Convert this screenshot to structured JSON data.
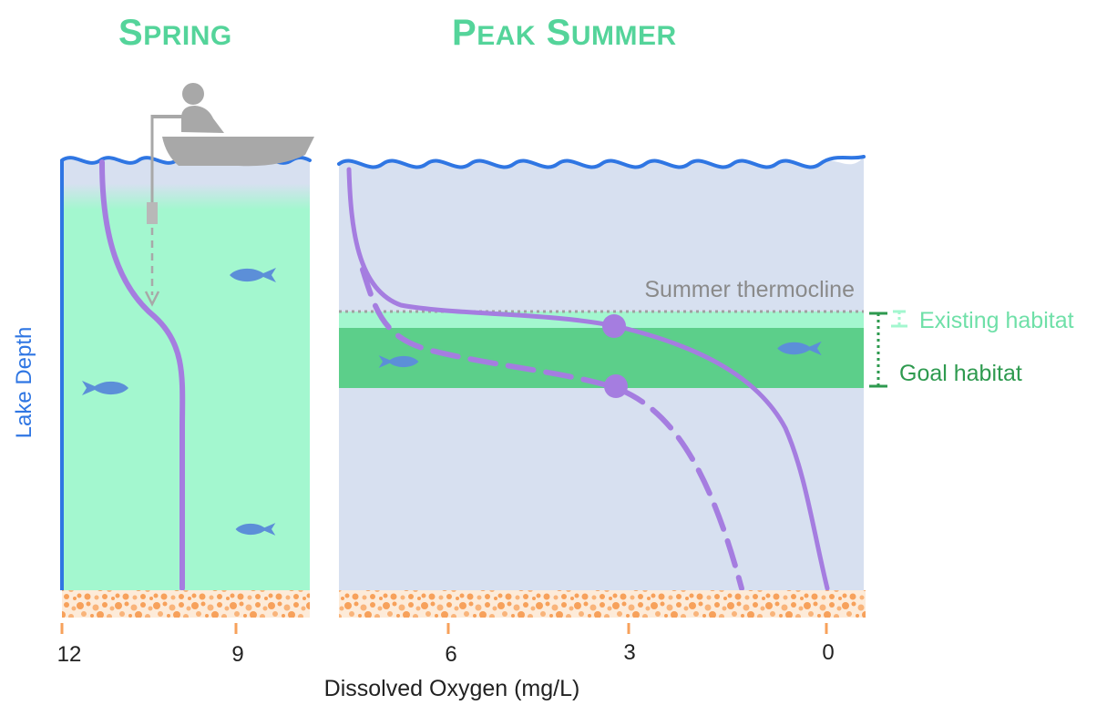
{
  "titles": {
    "spring": "Spring",
    "summer": "Peak Summer"
  },
  "labels": {
    "thermocline": "Summer thermocline",
    "existing_habitat": "Existing habitat",
    "goal_habitat": "Goal habitat",
    "y_axis": "Lake Depth",
    "x_axis": "Dissolved Oxygen (mg/L)"
  },
  "x_ticks": [
    "12",
    "9",
    "6",
    "3",
    "0"
  ],
  "icons": [
    "fisherman-in-boat-icon",
    "oxygen-probe-icon",
    "fish-icon",
    "sediment-icon"
  ],
  "colors": {
    "title": "#54d49a",
    "spring_water": "#a3f7cf",
    "summer_water": "#d7e0f0",
    "surface_line": "#2f76e3",
    "oxygen_curve": "#a57de0",
    "existing_band": "#a3f7cf",
    "goal_band": "#5ccf8a",
    "fish": "#5c8fd8",
    "sediment": "#f7a15b",
    "goal_text": "#2e9a4f",
    "existing_text": "#6fe0a8",
    "thermocline_text": "#8a8a8a"
  }
}
